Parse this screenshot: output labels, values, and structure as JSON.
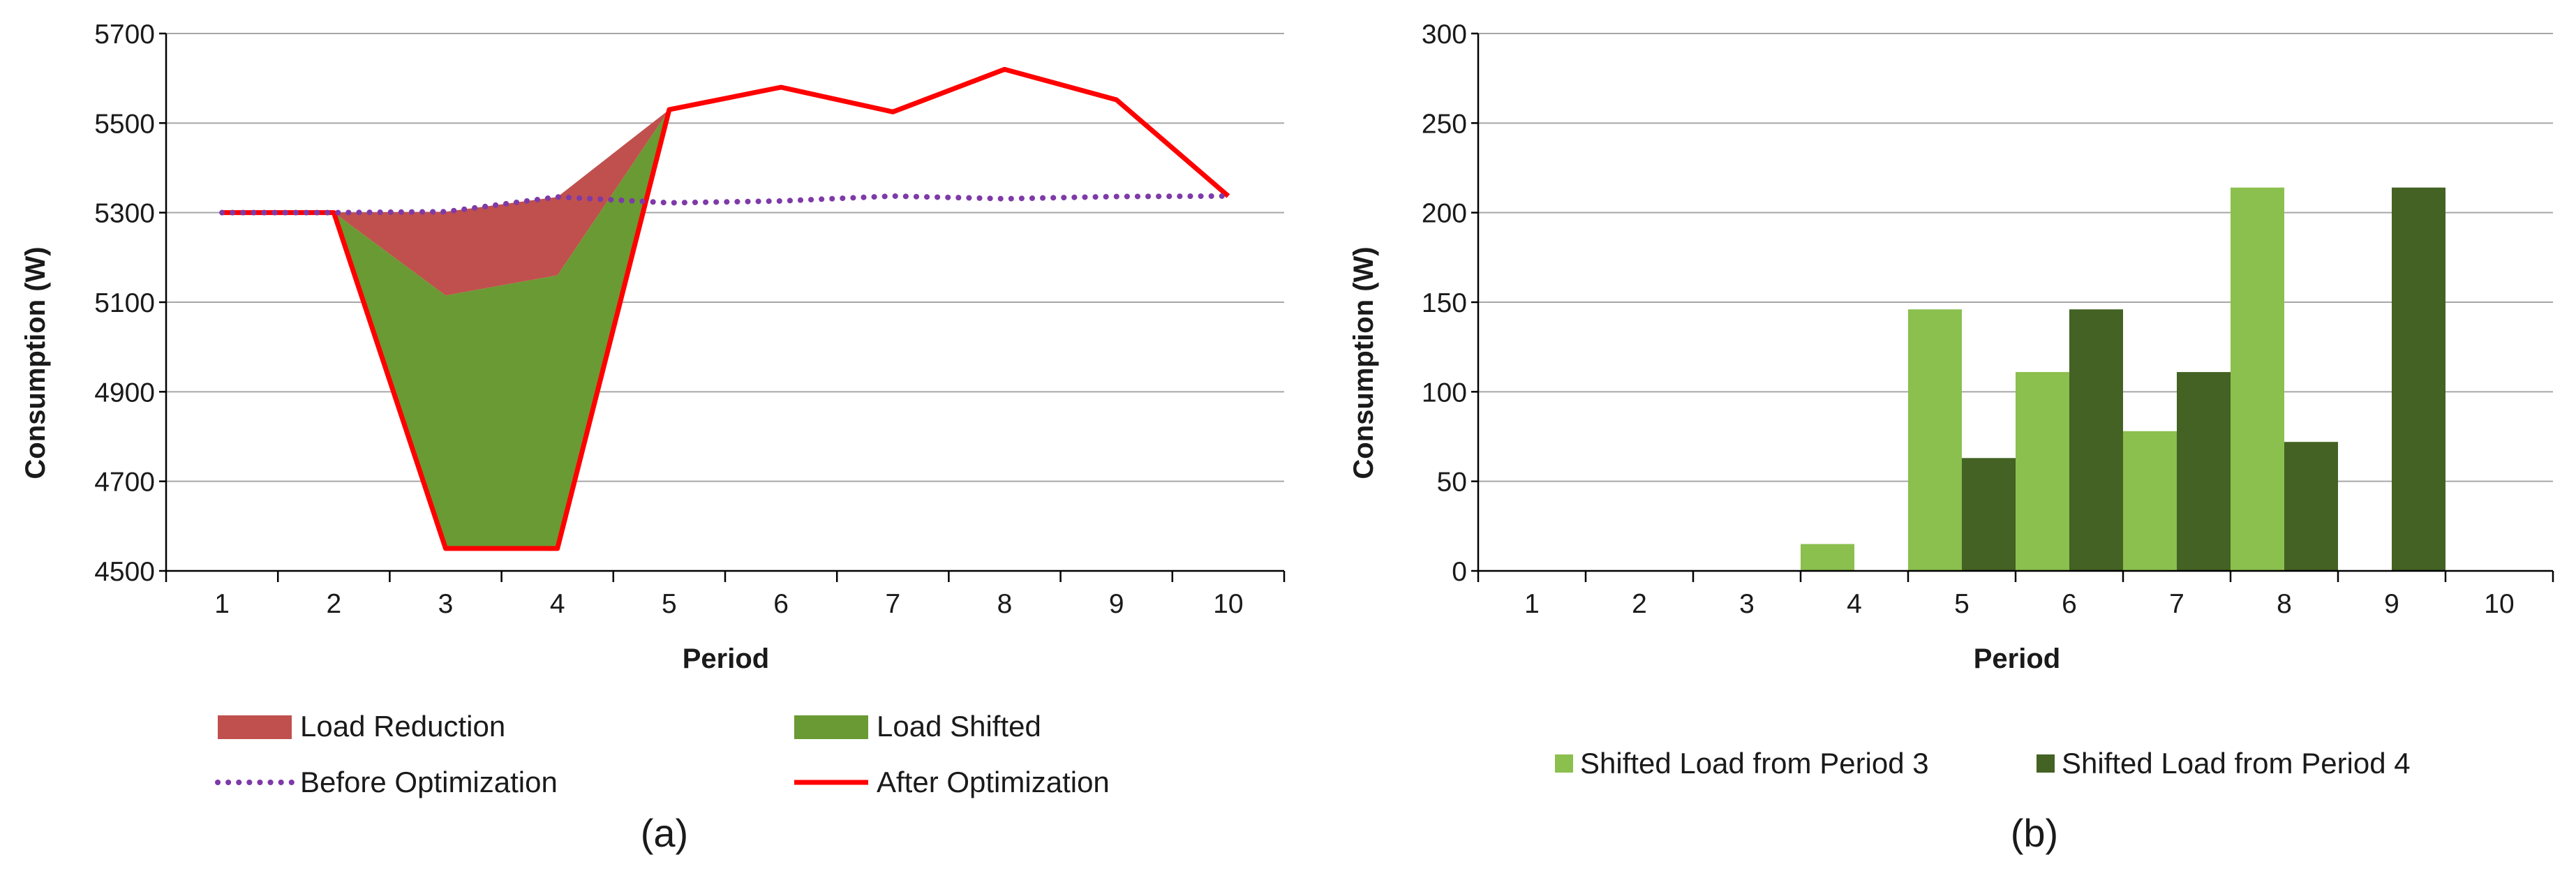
{
  "colors": {
    "reduction": "#c0504d",
    "shifted": "#6a9a33",
    "before": "#7e3aa8",
    "after": "#ff0000",
    "bar_p3": "#8bbf4e",
    "bar_p4": "#436223",
    "grid": "#a6a6a6",
    "axis": "#000000"
  },
  "chart_data": [
    {
      "type": "area",
      "panel_label": "(a)",
      "xlabel": "Period",
      "ylabel": "Consumption (W)",
      "ylim": [
        4500,
        5700
      ],
      "yticks": [
        4500,
        4700,
        4900,
        5100,
        5300,
        5500,
        5700
      ],
      "x": [
        1,
        2,
        3,
        4,
        5,
        6,
        7,
        8,
        9,
        10
      ],
      "series": [
        {
          "name": "Before Optimization",
          "style": "dotted-line",
          "values": [
            5300,
            5300,
            5302,
            5335,
            5322,
            5326,
            5337,
            5331,
            5336,
            5337
          ]
        },
        {
          "name": "After Optimization",
          "style": "line",
          "values": [
            5300,
            5300,
            4550,
            4550,
            5530,
            5580,
            5525,
            5620,
            5552,
            5337
          ]
        },
        {
          "name": "Load Reduction",
          "style": "area",
          "x": [
            2,
            3,
            4,
            5
          ],
          "upper": [
            5300,
            5302,
            5335,
            5530
          ],
          "lower": [
            5300,
            5115,
            5160,
            5530
          ]
        },
        {
          "name": "Load Shifted",
          "style": "area",
          "x": [
            2,
            3,
            4,
            5
          ],
          "upper": [
            5300,
            5115,
            5160,
            5530
          ],
          "lower": [
            5300,
            4550,
            4550,
            5530
          ]
        }
      ],
      "legend": [
        "Load Reduction",
        "Load Shifted",
        "Before Optimization",
        "After Optimization"
      ],
      "legend_position": "bottom",
      "grid": true
    },
    {
      "type": "bar",
      "panel_label": "(b)",
      "xlabel": "Period",
      "ylabel": "Consumption (W)",
      "ylim": [
        0,
        300
      ],
      "yticks": [
        0,
        50,
        100,
        150,
        200,
        250,
        300
      ],
      "categories": [
        "1",
        "2",
        "3",
        "4",
        "5",
        "6",
        "7",
        "8",
        "9",
        "10"
      ],
      "series": [
        {
          "name": "Shifted Load from Period 3",
          "values": [
            0,
            0,
            0,
            15,
            146,
            111,
            78,
            214,
            0,
            0
          ]
        },
        {
          "name": "Shifted Load from Period 4",
          "values": [
            0,
            0,
            0,
            0,
            63,
            146,
            111,
            72,
            214,
            0
          ]
        }
      ],
      "legend": [
        "Shifted Load from Period 3",
        "Shifted Load from Period 4"
      ],
      "legend_position": "bottom",
      "grid": true
    }
  ]
}
